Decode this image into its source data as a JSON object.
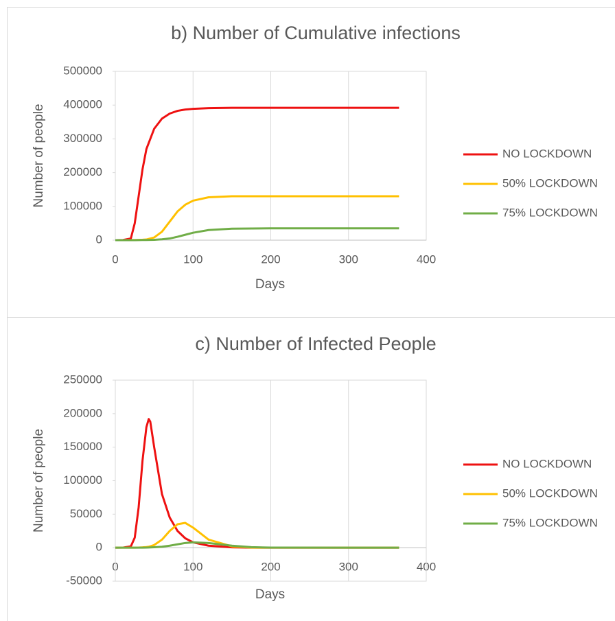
{
  "chart_data": [
    {
      "type": "line",
      "title": "b) Number of Cumulative infections",
      "xlabel": "Days",
      "ylabel": "Number of people",
      "x": [
        0,
        10,
        20,
        25,
        30,
        35,
        40,
        50,
        60,
        70,
        80,
        90,
        100,
        120,
        150,
        200,
        250,
        300,
        365
      ],
      "series": [
        {
          "name": "NO LOCKDOWN",
          "color": "#ee1111",
          "values": [
            0,
            500,
            5000,
            50000,
            130000,
            210000,
            270000,
            330000,
            360000,
            375000,
            383000,
            387000,
            389000,
            391000,
            392000,
            392000,
            392000,
            392000,
            392000
          ]
        },
        {
          "name": "50% LOCKDOWN",
          "color": "#ffc000",
          "values": [
            0,
            0,
            200,
            500,
            800,
            1200,
            2000,
            8000,
            25000,
            55000,
            85000,
            105000,
            117000,
            127000,
            130000,
            130000,
            130000,
            130000,
            130000
          ]
        },
        {
          "name": "75% LOCKDOWN",
          "color": "#70ad47",
          "values": [
            0,
            0,
            0,
            100,
            200,
            400,
            600,
            1000,
            2500,
            5000,
            10000,
            16000,
            22000,
            30000,
            34000,
            35000,
            35000,
            35000,
            35000
          ]
        }
      ],
      "xlim": [
        0,
        400
      ],
      "xticks": [
        0,
        100,
        200,
        300,
        400
      ],
      "ylim": [
        0,
        500000
      ],
      "yticks": [
        0,
        100000,
        200000,
        300000,
        400000,
        500000
      ],
      "grid": "x",
      "legend": "right"
    },
    {
      "type": "line",
      "title": "c) Number of Infected People",
      "xlabel": "Days",
      "ylabel": "Number of people",
      "x": [
        0,
        10,
        20,
        25,
        30,
        35,
        40,
        43,
        45,
        50,
        60,
        70,
        80,
        90,
        100,
        120,
        150,
        175,
        200,
        300,
        365
      ],
      "series": [
        {
          "name": "NO LOCKDOWN",
          "color": "#ee1111",
          "values": [
            0,
            200,
            2000,
            15000,
            60000,
            130000,
            180000,
            192000,
            188000,
            150000,
            80000,
            45000,
            25000,
            14000,
            8000,
            3000,
            500,
            0,
            0,
            0,
            0
          ]
        },
        {
          "name": "50% LOCKDOWN",
          "color": "#ffc000",
          "values": [
            0,
            0,
            0,
            0,
            200,
            500,
            1000,
            1500,
            2000,
            4000,
            12000,
            25000,
            35000,
            37000,
            30000,
            12000,
            2000,
            200,
            0,
            0,
            0
          ]
        },
        {
          "name": "75% LOCKDOWN",
          "color": "#70ad47",
          "values": [
            0,
            0,
            0,
            0,
            0,
            100,
            200,
            300,
            400,
            700,
            1500,
            3000,
            5000,
            7000,
            8000,
            7000,
            3000,
            800,
            200,
            0,
            0
          ]
        }
      ],
      "xlim": [
        0,
        400
      ],
      "xticks": [
        0,
        100,
        200,
        300,
        400
      ],
      "ylim": [
        -50000,
        250000
      ],
      "yticks": [
        -50000,
        0,
        50000,
        100000,
        150000,
        200000,
        250000
      ],
      "grid": "x",
      "legend": "right"
    }
  ]
}
